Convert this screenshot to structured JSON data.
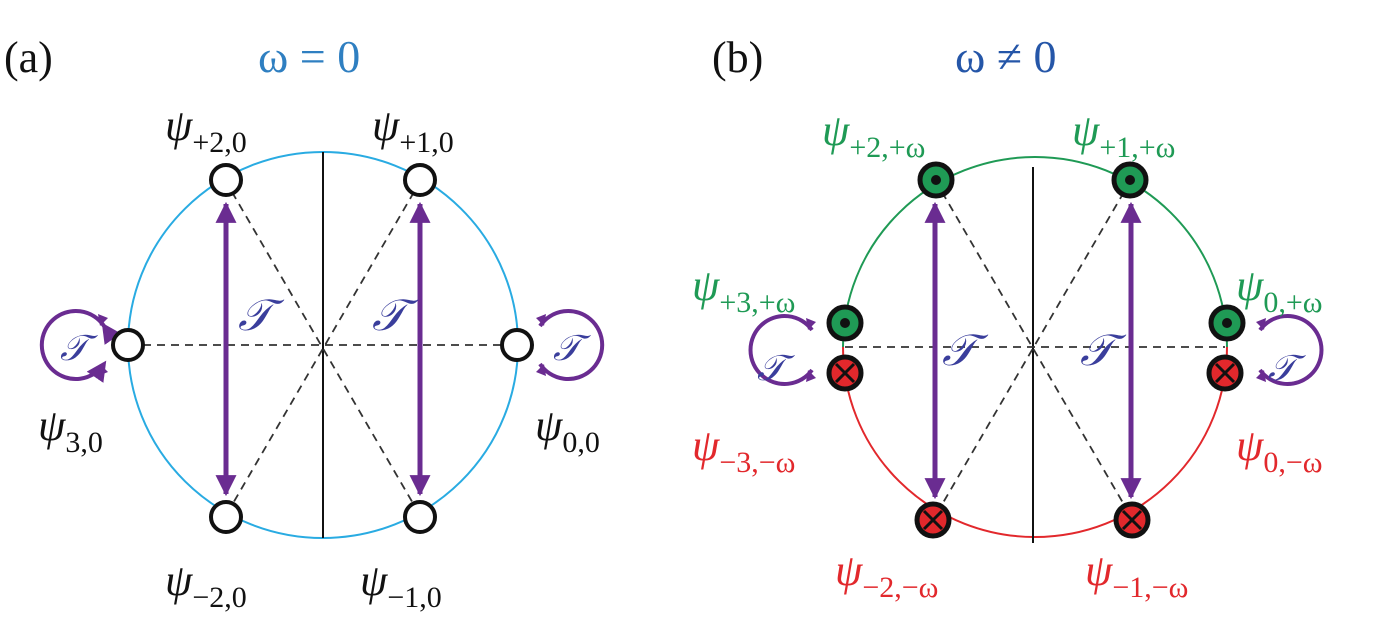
{
  "colors": {
    "circle_a": "#29abe2",
    "upper_b": "#1f9a55",
    "lower_b": "#e2282c",
    "arrow": "#6a2c91",
    "operator": "#3a3e9c",
    "title_a": "#2f7fc1",
    "title_b": "#2556a8"
  },
  "panel_a": {
    "label": "(a)",
    "title": "ω = 0",
    "operator": "𝒯",
    "states": [
      {
        "psi": "ψ",
        "sub": "+2,0"
      },
      {
        "psi": "ψ",
        "sub": "+1,0"
      },
      {
        "psi": "ψ",
        "sub": "3,0"
      },
      {
        "psi": "ψ",
        "sub": "0,0"
      },
      {
        "psi": "ψ",
        "sub": "−2,0"
      },
      {
        "psi": "ψ",
        "sub": "−1,0"
      }
    ]
  },
  "panel_b": {
    "label": "(b)",
    "title": "ω ≠ 0",
    "operator": "𝒯",
    "states": [
      {
        "psi": "ψ",
        "sub": "+2,+ω"
      },
      {
        "psi": "ψ",
        "sub": "+1,+ω"
      },
      {
        "psi": "ψ",
        "sub": "+3,+ω"
      },
      {
        "psi": "ψ",
        "sub": "0,+ω"
      },
      {
        "psi": "ψ",
        "sub": "−3,−ω"
      },
      {
        "psi": "ψ",
        "sub": "0,−ω"
      },
      {
        "psi": "ψ",
        "sub": "−2,−ω"
      },
      {
        "psi": "ψ",
        "sub": "−1,−ω"
      }
    ]
  }
}
